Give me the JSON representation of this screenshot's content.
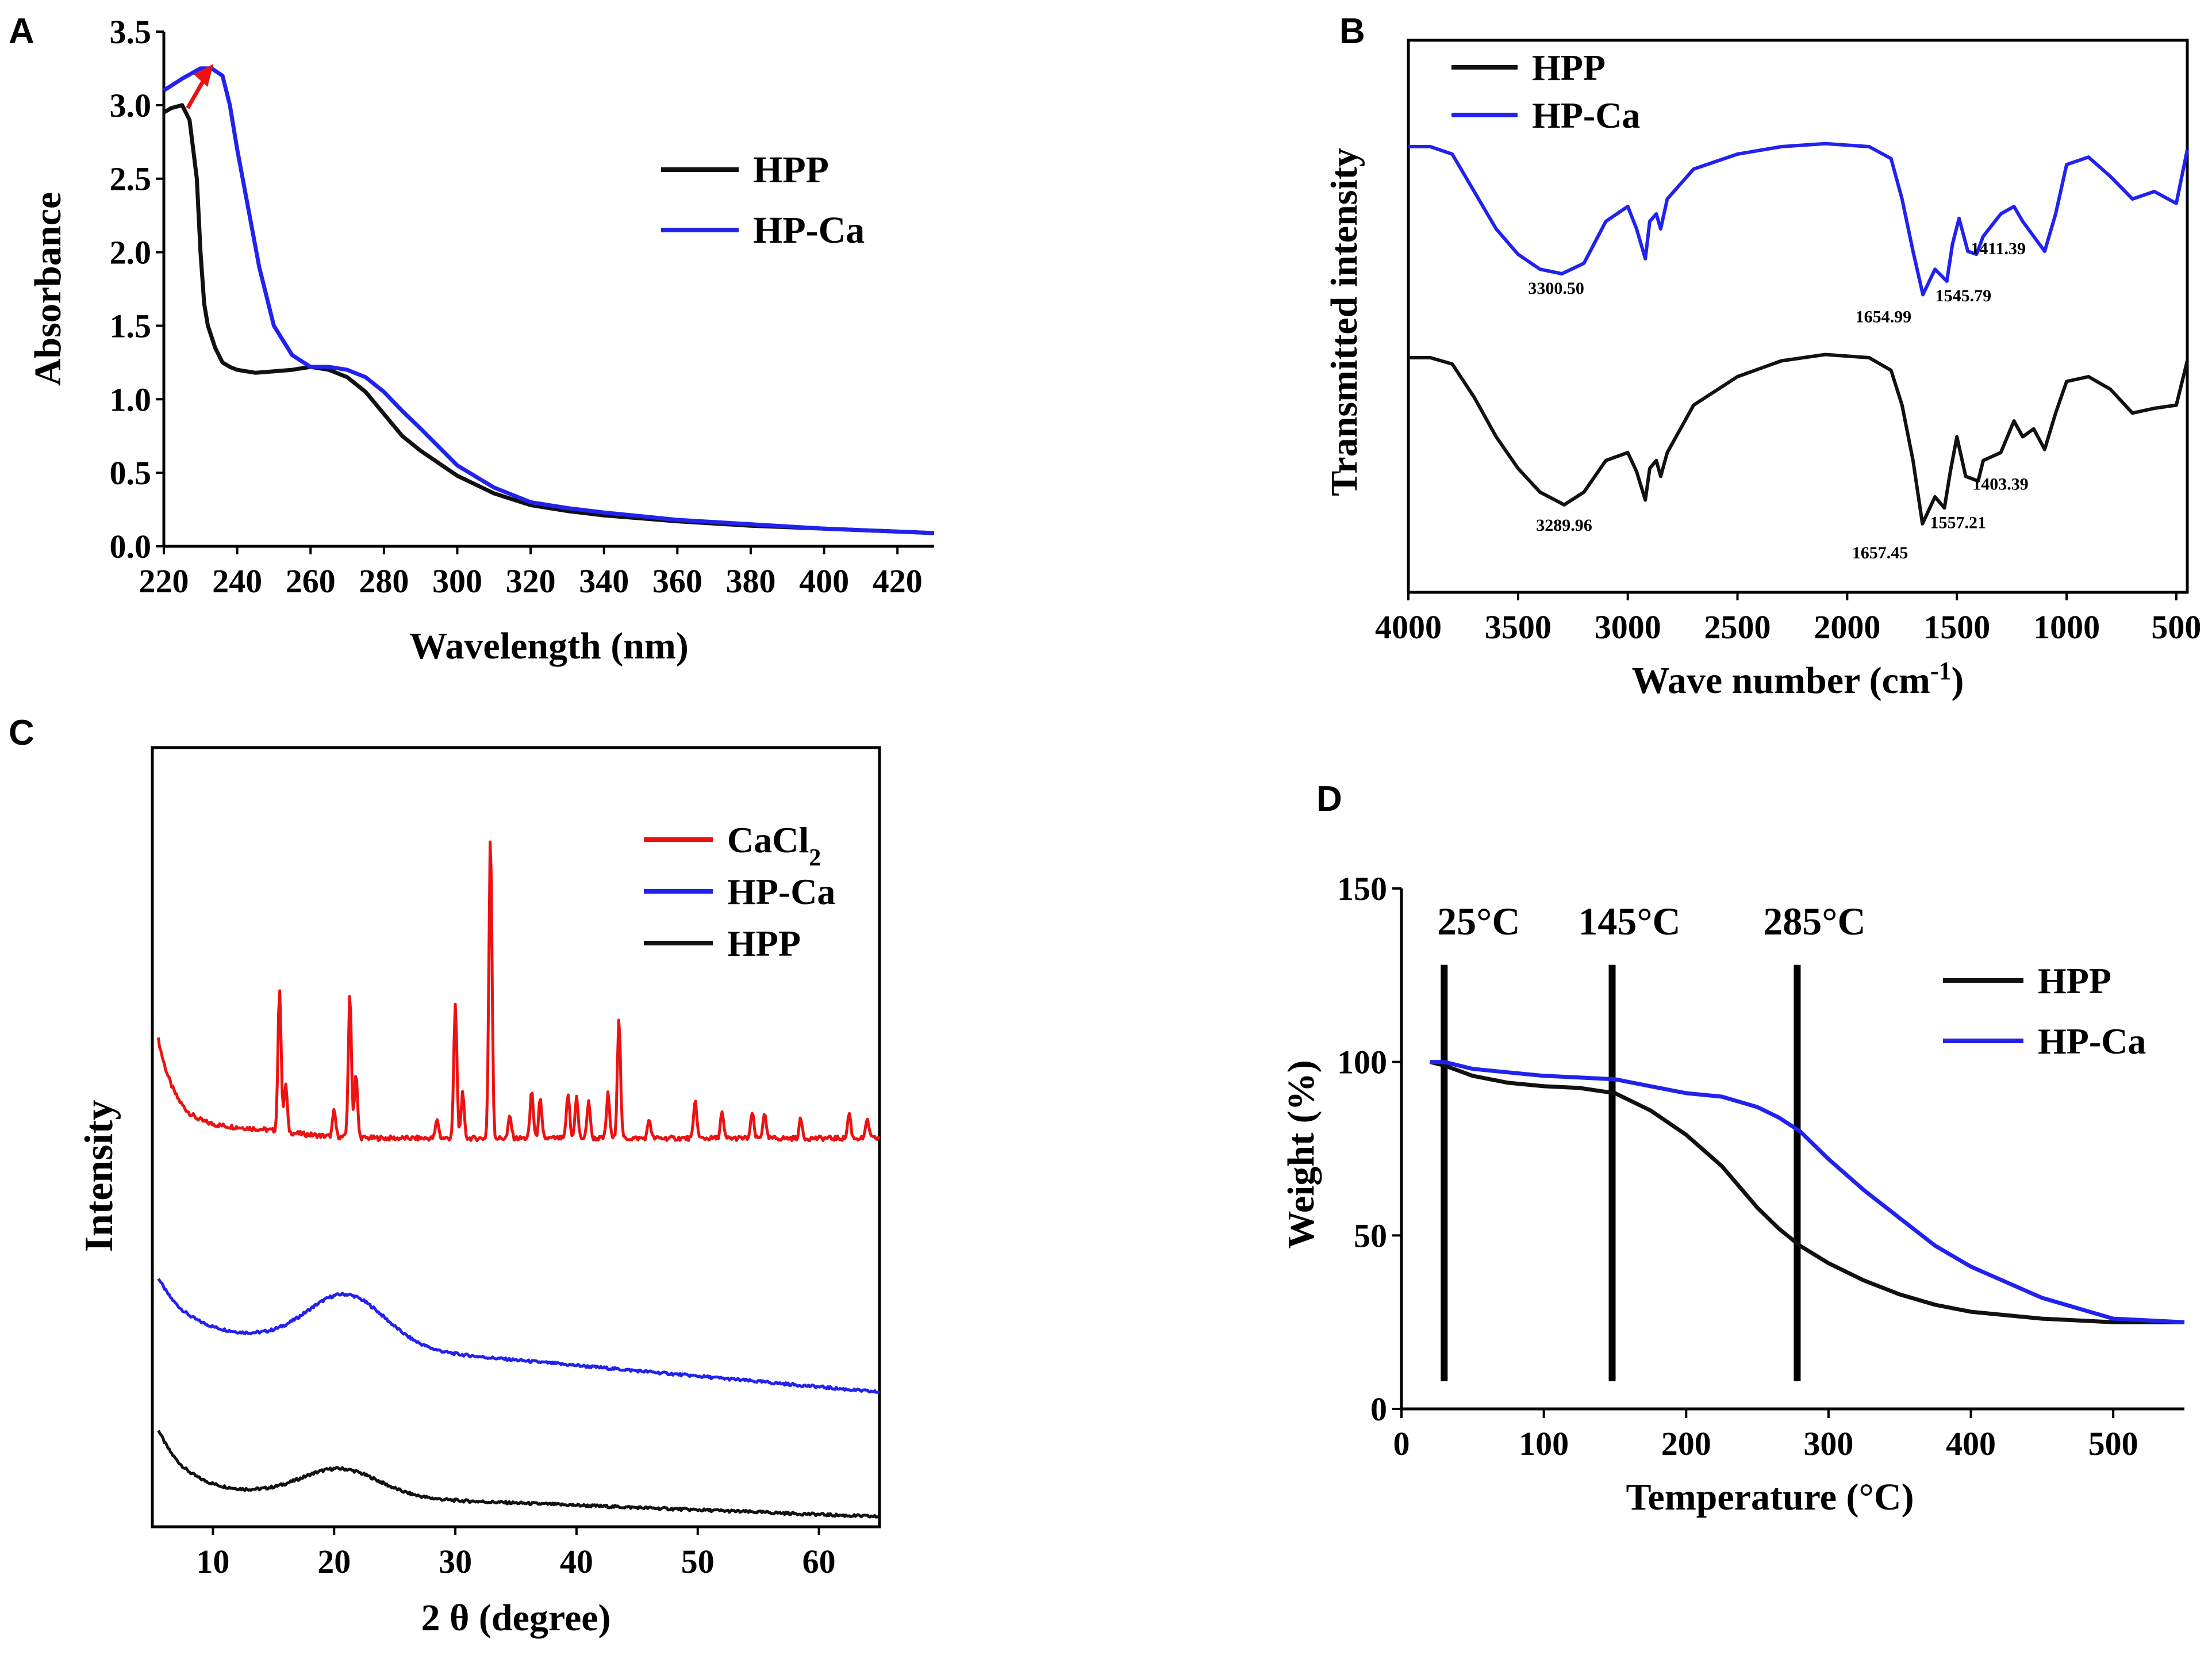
{
  "colors": {
    "black": "#111111",
    "blue": "#2222ee",
    "red": "#ee1111",
    "arrow": "#ee1111"
  },
  "chart_data": [
    {
      "panel": "A",
      "type": "line",
      "xlabel": "Wavelength (nm)",
      "ylabel": "Absorbance",
      "xlim": [
        220,
        430
      ],
      "ylim": [
        0,
        3.5
      ],
      "xticks": [
        220,
        240,
        260,
        280,
        300,
        320,
        340,
        360,
        380,
        400,
        420
      ],
      "yticks": [
        0.0,
        0.5,
        1.0,
        1.5,
        2.0,
        2.5,
        3.0,
        3.5
      ],
      "ytick_labels": [
        "0.0",
        "0.5",
        "1.0",
        "1.5",
        "2.0",
        "2.5",
        "3.0",
        "3.5"
      ],
      "legend_position": "top-right",
      "annotation": "red arrow showing peak shift from HPP to HP-Ca near 230 nm",
      "series": [
        {
          "name": "HPP",
          "color": "#111111",
          "x": [
            220,
            222,
            225,
            227,
            229,
            230,
            231,
            232,
            234,
            236,
            238,
            240,
            245,
            250,
            255,
            260,
            265,
            270,
            275,
            280,
            285,
            290,
            300,
            310,
            320,
            330,
            340,
            360,
            380,
            400,
            420,
            430
          ],
          "y": [
            2.95,
            2.98,
            3.0,
            2.9,
            2.5,
            2.0,
            1.65,
            1.5,
            1.35,
            1.25,
            1.22,
            1.2,
            1.18,
            1.19,
            1.2,
            1.22,
            1.2,
            1.15,
            1.05,
            0.9,
            0.75,
            0.65,
            0.48,
            0.36,
            0.28,
            0.24,
            0.21,
            0.17,
            0.14,
            0.12,
            0.1,
            0.09
          ]
        },
        {
          "name": "HP-Ca",
          "color": "#2222ee",
          "x": [
            220,
            225,
            230,
            233,
            236,
            238,
            240,
            243,
            246,
            250,
            255,
            260,
            265,
            270,
            275,
            280,
            285,
            290,
            300,
            310,
            320,
            330,
            340,
            360,
            380,
            400,
            420,
            430
          ],
          "y": [
            3.1,
            3.18,
            3.25,
            3.25,
            3.2,
            3.0,
            2.7,
            2.3,
            1.9,
            1.5,
            1.3,
            1.22,
            1.22,
            1.2,
            1.15,
            1.05,
            0.92,
            0.8,
            0.55,
            0.4,
            0.3,
            0.26,
            0.23,
            0.18,
            0.15,
            0.12,
            0.1,
            0.09
          ]
        }
      ]
    },
    {
      "panel": "B",
      "type": "line",
      "xlabel": "Wave number (cm",
      "xlabel_sup": "-1",
      "xlabel_end": ")",
      "ylabel": "Transmitted intensity",
      "xlim": [
        4000,
        450
      ],
      "xticks": [
        4000,
        3500,
        3000,
        2500,
        2000,
        1500,
        1000,
        500
      ],
      "y_axis": "arbitrary units, curves offset vertically",
      "legend_position": "top-left",
      "series": [
        {
          "name": "HPP",
          "color": "#111111",
          "x": [
            4000,
            3900,
            3800,
            3700,
            3600,
            3500,
            3400,
            3290,
            3200,
            3100,
            3000,
            2960,
            2920,
            2900,
            2870,
            2850,
            2820,
            2700,
            2500,
            2300,
            2100,
            1900,
            1800,
            1750,
            1700,
            1657,
            1600,
            1557,
            1530,
            1500,
            1460,
            1403,
            1380,
            1300,
            1240,
            1200,
            1150,
            1100,
            1050,
            1000,
            900,
            800,
            700,
            600,
            500,
            450
          ],
          "y": [
            0.0,
            0.0,
            -0.04,
            -0.25,
            -0.5,
            -0.7,
            -0.85,
            -0.93,
            -0.85,
            -0.65,
            -0.6,
            -0.72,
            -0.9,
            -0.7,
            -0.65,
            -0.75,
            -0.6,
            -0.3,
            -0.12,
            -0.02,
            0.02,
            0.0,
            -0.08,
            -0.3,
            -0.65,
            -1.05,
            -0.88,
            -0.95,
            -0.72,
            -0.5,
            -0.75,
            -0.78,
            -0.65,
            -0.6,
            -0.4,
            -0.5,
            -0.45,
            -0.58,
            -0.35,
            -0.15,
            -0.12,
            -0.2,
            -0.35,
            -0.32,
            -0.3,
            -0.02
          ]
        },
        {
          "name": "HP-Ca",
          "color": "#2222ee",
          "x": [
            4000,
            3900,
            3800,
            3700,
            3600,
            3500,
            3400,
            3300,
            3200,
            3100,
            3000,
            2960,
            2920,
            2900,
            2870,
            2850,
            2820,
            2700,
            2500,
            2300,
            2100,
            1900,
            1800,
            1750,
            1700,
            1655,
            1600,
            1546,
            1520,
            1490,
            1450,
            1411,
            1380,
            1300,
            1240,
            1200,
            1150,
            1100,
            1050,
            1000,
            900,
            800,
            700,
            600,
            500,
            450
          ],
          "y": [
            0.0,
            0.0,
            -0.05,
            -0.3,
            -0.55,
            -0.72,
            -0.82,
            -0.85,
            -0.78,
            -0.5,
            -0.4,
            -0.55,
            -0.75,
            -0.5,
            -0.45,
            -0.55,
            -0.35,
            -0.15,
            -0.05,
            0.0,
            0.02,
            0.0,
            -0.08,
            -0.35,
            -0.7,
            -0.99,
            -0.82,
            -0.9,
            -0.65,
            -0.48,
            -0.7,
            -0.72,
            -0.6,
            -0.45,
            -0.4,
            -0.5,
            -0.6,
            -0.7,
            -0.45,
            -0.12,
            -0.07,
            -0.2,
            -0.35,
            -0.3,
            -0.38,
            -0.02
          ]
        }
      ],
      "annotations": [
        {
          "text": "3300.50",
          "series": "HP-Ca",
          "x": 3300
        },
        {
          "text": "1654.99",
          "series": "HP-Ca",
          "x": 1655
        },
        {
          "text": "1545.79",
          "series": "HP-Ca",
          "x": 1546
        },
        {
          "text": "1411.39",
          "series": "HP-Ca",
          "x": 1411
        },
        {
          "text": "3289.96",
          "series": "HPP",
          "x": 3290
        },
        {
          "text": "1657.45",
          "series": "HPP",
          "x": 1657
        },
        {
          "text": "1557.21",
          "series": "HPP",
          "x": 1557
        },
        {
          "text": "1403.39",
          "series": "HPP",
          "x": 1403
        }
      ]
    },
    {
      "panel": "C",
      "type": "line",
      "xlabel": "2 θ (degree)",
      "ylabel": "Intensity",
      "xlim": [
        5,
        65
      ],
      "xticks": [
        10,
        20,
        30,
        40,
        50,
        60
      ],
      "y_axis": "arbitrary units, curves offset vertically",
      "legend_position": "top-right",
      "series": [
        {
          "name": "CaCl",
          "name_sub": "2",
          "color": "#ee1111",
          "peaks": [
            {
              "x": 15.5,
              "h": 0.45
            },
            {
              "x": 16.0,
              "h": 0.15
            },
            {
              "x": 20.0,
              "h": 0.08
            },
            {
              "x": 21.3,
              "h": 0.45
            },
            {
              "x": 21.8,
              "h": 0.2
            },
            {
              "x": 28.5,
              "h": 0.06
            },
            {
              "x": 30.0,
              "h": 0.42
            },
            {
              "x": 30.6,
              "h": 0.14
            },
            {
              "x": 32.9,
              "h": 0.95
            },
            {
              "x": 34.5,
              "h": 0.07
            },
            {
              "x": 36.3,
              "h": 0.15
            },
            {
              "x": 37.0,
              "h": 0.12
            },
            {
              "x": 39.3,
              "h": 0.14
            },
            {
              "x": 40.0,
              "h": 0.13
            },
            {
              "x": 41.0,
              "h": 0.12
            },
            {
              "x": 42.6,
              "h": 0.14
            },
            {
              "x": 43.5,
              "h": 0.38
            },
            {
              "x": 46.0,
              "h": 0.06
            },
            {
              "x": 49.8,
              "h": 0.12
            },
            {
              "x": 52.0,
              "h": 0.08
            },
            {
              "x": 54.5,
              "h": 0.08
            },
            {
              "x": 55.5,
              "h": 0.08
            },
            {
              "x": 58.5,
              "h": 0.06
            },
            {
              "x": 62.5,
              "h": 0.08
            },
            {
              "x": 64.0,
              "h": 0.06
            }
          ]
        },
        {
          "name": "HP-Ca",
          "color": "#2222ee",
          "hump_center": 21,
          "hump_height": 0.22
        },
        {
          "name": "HPP",
          "color": "#111111",
          "hump_center": 20.5,
          "hump_height": 0.12
        }
      ]
    },
    {
      "panel": "D",
      "type": "line",
      "xlabel": "Temperature (°C)",
      "ylabel": "Weight (%)",
      "xlim": [
        0,
        550
      ],
      "ylim": [
        0,
        150
      ],
      "xticks": [
        0,
        100,
        200,
        300,
        400,
        500
      ],
      "yticks": [
        0,
        50,
        100,
        150
      ],
      "legend_position": "right",
      "vlines": [
        {
          "x": 30,
          "label": "25°C"
        },
        {
          "x": 148,
          "label": "145°C"
        },
        {
          "x": 278,
          "label": "285°C"
        }
      ],
      "series": [
        {
          "name": "HPP",
          "color": "#111111",
          "x": [
            20,
            30,
            50,
            75,
            100,
            125,
            150,
            175,
            200,
            225,
            250,
            265,
            280,
            300,
            325,
            350,
            375,
            400,
            450,
            500,
            550
          ],
          "y": [
            100,
            99,
            96,
            94,
            93,
            92.5,
            91,
            86,
            79,
            70,
            58,
            52,
            47,
            42,
            37,
            33,
            30,
            28,
            26,
            25,
            25
          ]
        },
        {
          "name": "HP-Ca",
          "color": "#2222ee",
          "x": [
            20,
            30,
            50,
            75,
            100,
            125,
            150,
            175,
            200,
            225,
            250,
            265,
            280,
            300,
            325,
            350,
            375,
            400,
            450,
            500,
            550
          ],
          "y": [
            100,
            100,
            98,
            97,
            96,
            95.5,
            95,
            93,
            91,
            90,
            87,
            84,
            80,
            72,
            63,
            55,
            47,
            41,
            32,
            26,
            25
          ]
        }
      ]
    }
  ]
}
